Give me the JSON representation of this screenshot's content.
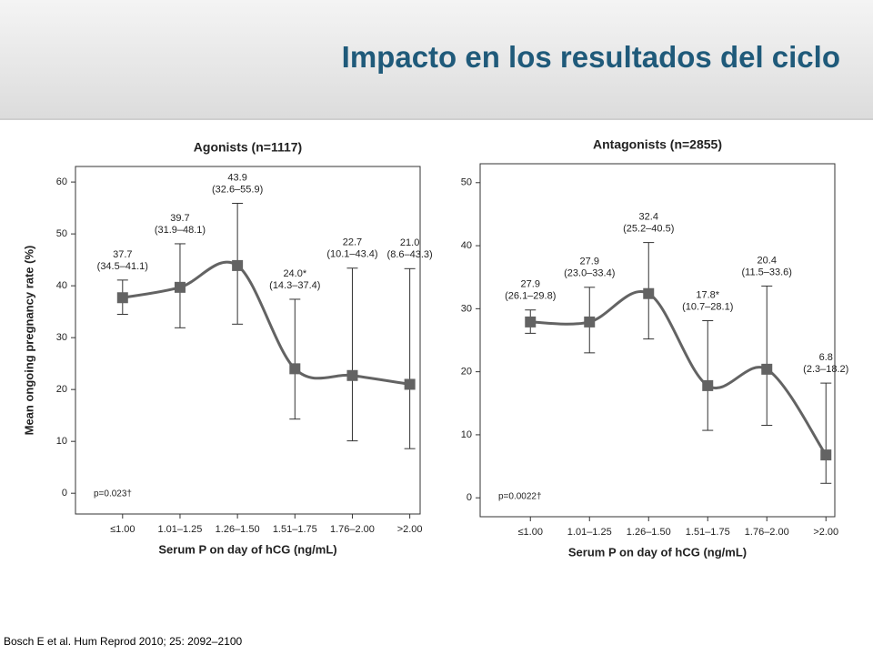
{
  "title": "Impacto en los resultados del ciclo",
  "footnote": "Bosch E et al. Hum Reprod 2010; 25: 2092–2100",
  "chart_data": [
    {
      "type": "line",
      "title": "Agonists (n=1117)",
      "x_label": "Serum P on day of hCG (ng/mL)",
      "y_label": "Mean ongoing pregnancy rate (%)",
      "annotation": "p=0.023†",
      "categories": [
        "≤1.00",
        "1.01–1.25",
        "1.26–1.50",
        "1.51–1.75",
        "1.76–2.00",
        ">2.00"
      ],
      "values": [
        37.7,
        39.7,
        43.9,
        24.0,
        22.7,
        21.0
      ],
      "value_labels": [
        "37.7",
        "39.7",
        "43.9",
        "24.0*",
        "22.7",
        "21.0"
      ],
      "low": [
        34.5,
        31.9,
        32.6,
        14.3,
        10.1,
        8.6
      ],
      "high": [
        41.1,
        48.1,
        55.9,
        37.4,
        43.4,
        43.3
      ],
      "ci_labels": [
        "(34.5–41.1)",
        "(31.9–48.1)",
        "(32.6–55.9)",
        "(14.3–37.4)",
        "(10.1–43.4)",
        "(8.6–43.3)"
      ],
      "color": "#636363",
      "ylim": [
        -4,
        63
      ],
      "yticks": [
        0,
        10,
        20,
        30,
        40,
        50,
        60
      ]
    },
    {
      "type": "line",
      "title": "Antagonists (n=2855)",
      "x_label": "Serum P on day of hCG (ng/mL)",
      "annotation": "p=0.0022†",
      "categories": [
        "≤1.00",
        "1.01–1.25",
        "1.26–1.50",
        "1.51–1.75",
        "1.76–2.00",
        ">2.00"
      ],
      "values": [
        27.9,
        27.9,
        32.4,
        17.8,
        20.4,
        6.8
      ],
      "value_labels": [
        "27.9",
        "27.9",
        "32.4",
        "17.8*",
        "20.4",
        "6.8"
      ],
      "low": [
        26.1,
        23.0,
        25.2,
        10.7,
        11.5,
        2.3
      ],
      "high": [
        29.8,
        33.4,
        40.5,
        28.1,
        33.6,
        18.2
      ],
      "ci_labels": [
        "(26.1–29.8)",
        "(23.0–33.4)",
        "(25.2–40.5)",
        "(10.7–28.1)",
        "(11.5–33.6)",
        "(2.3–18.2)"
      ],
      "color": "#636363",
      "ylim": [
        -3,
        53
      ],
      "yticks": [
        0,
        10,
        20,
        30,
        40,
        50
      ]
    }
  ]
}
